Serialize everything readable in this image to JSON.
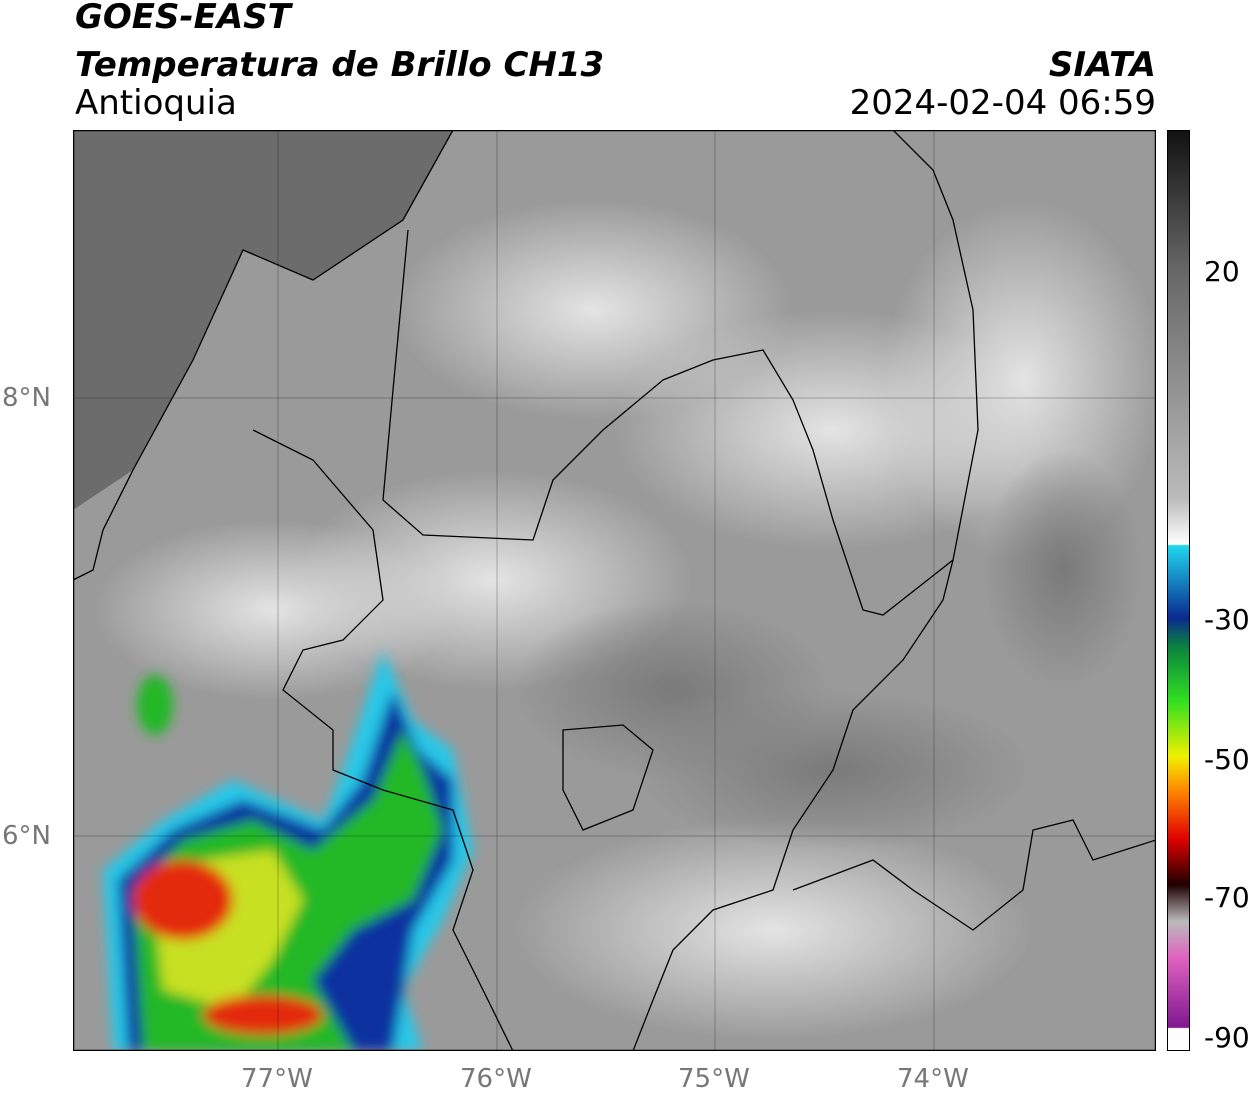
{
  "header": {
    "title": "GOES-EAST",
    "subtitle": "Temperatura de Brillo CH13",
    "region": "Antioquia",
    "source": "SIATA",
    "datetime": "2024-02-04 06:59"
  },
  "map": {
    "lat_labels": [
      "8°N",
      "6°N"
    ],
    "lon_labels": [
      "77°W",
      "76°W",
      "75°W",
      "74°W"
    ]
  },
  "colorbar": {
    "labels": [
      "20",
      "-30",
      "-50",
      "-70",
      "-90"
    ]
  }
}
